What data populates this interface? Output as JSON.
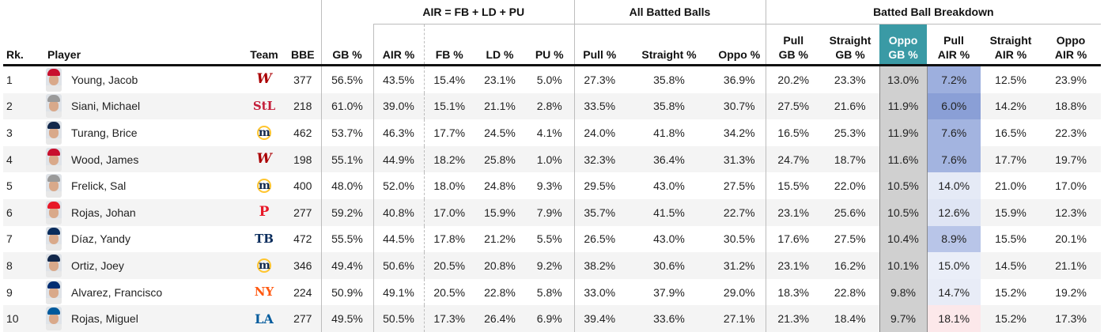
{
  "groups": {
    "air": "AIR = FB + LD + PU",
    "all": "All Batted Balls",
    "breakdown": "Batted Ball Breakdown"
  },
  "columns": {
    "rk": "Rk.",
    "player": "Player",
    "team": "Team",
    "bbe": "BBE",
    "gb": "GB %",
    "air": "AIR %",
    "fb": "FB %",
    "ld": "LD %",
    "pu": "PU %",
    "pull": "Pull %",
    "straight": "Straight %",
    "oppo": "Oppo %",
    "pull_gb": [
      "Pull",
      "GB %"
    ],
    "straight_gb": [
      "Straight",
      "GB %"
    ],
    "oppo_gb": [
      "Oppo",
      "GB %"
    ],
    "pull_air": [
      "Pull",
      "AIR %"
    ],
    "straight_air": [
      "Straight",
      "AIR %"
    ],
    "oppo_air": [
      "Oppo",
      "AIR %"
    ]
  },
  "colors": {
    "oppo_gb_header": "#3a9aa5",
    "oppo_gb_cells": "#d0d0d0",
    "pull_air_low": "#8a9fd6",
    "pull_air_high": "#fce8ea"
  },
  "rows": [
    {
      "rk": "1",
      "player": "Young, Jacob",
      "team": "W",
      "team_icon": "nationals-logo-icon",
      "team_class": "wsh",
      "cap": "#c8102e",
      "bbe": "377",
      "gb": "56.5%",
      "air": "43.5%",
      "fb": "15.4%",
      "ld": "23.1%",
      "pu": "5.0%",
      "pull": "27.3%",
      "straight": "35.8%",
      "oppo": "36.9%",
      "pull_gb": "20.2%",
      "straight_gb": "23.3%",
      "oppo_gb": "13.0%",
      "pull_air": "7.2%",
      "pull_air_level": 7.2,
      "straight_air": "12.5%",
      "oppo_air": "23.9%"
    },
    {
      "rk": "2",
      "player": "Siani, Michael",
      "team": "StL",
      "team_icon": "cardinals-logo-icon",
      "team_class": "stl",
      "cap": "#9a9a9a",
      "bbe": "218",
      "gb": "61.0%",
      "air": "39.0%",
      "fb": "15.1%",
      "ld": "21.1%",
      "pu": "2.8%",
      "pull": "33.5%",
      "straight": "35.8%",
      "oppo": "30.7%",
      "pull_gb": "27.5%",
      "straight_gb": "21.6%",
      "oppo_gb": "11.9%",
      "pull_air": "6.0%",
      "pull_air_level": 6.0,
      "straight_air": "14.2%",
      "oppo_air": "18.8%"
    },
    {
      "rk": "3",
      "player": "Turang, Brice",
      "team": "m",
      "team_icon": "brewers-logo-icon",
      "team_class": "mil",
      "cap": "#12284b",
      "bbe": "462",
      "gb": "53.7%",
      "air": "46.3%",
      "fb": "17.7%",
      "ld": "24.5%",
      "pu": "4.1%",
      "pull": "24.0%",
      "straight": "41.8%",
      "oppo": "34.2%",
      "pull_gb": "16.5%",
      "straight_gb": "25.3%",
      "oppo_gb": "11.9%",
      "pull_air": "7.6%",
      "pull_air_level": 7.6,
      "straight_air": "16.5%",
      "oppo_air": "22.3%"
    },
    {
      "rk": "4",
      "player": "Wood, James",
      "team": "W",
      "team_icon": "nationals-logo-icon",
      "team_class": "wsh",
      "cap": "#c8102e",
      "bbe": "198",
      "gb": "55.1%",
      "air": "44.9%",
      "fb": "18.2%",
      "ld": "25.8%",
      "pu": "1.0%",
      "pull": "32.3%",
      "straight": "36.4%",
      "oppo": "31.3%",
      "pull_gb": "24.7%",
      "straight_gb": "18.7%",
      "oppo_gb": "11.6%",
      "pull_air": "7.6%",
      "pull_air_level": 7.6,
      "straight_air": "17.7%",
      "oppo_air": "19.7%"
    },
    {
      "rk": "5",
      "player": "Frelick, Sal",
      "team": "m",
      "team_icon": "brewers-logo-icon",
      "team_class": "mil",
      "cap": "#9a9a9a",
      "bbe": "400",
      "gb": "48.0%",
      "air": "52.0%",
      "fb": "18.0%",
      "ld": "24.8%",
      "pu": "9.3%",
      "pull": "29.5%",
      "straight": "43.0%",
      "oppo": "27.5%",
      "pull_gb": "15.5%",
      "straight_gb": "22.0%",
      "oppo_gb": "10.5%",
      "pull_air": "14.0%",
      "pull_air_level": 14.0,
      "straight_air": "21.0%",
      "oppo_air": "17.0%"
    },
    {
      "rk": "6",
      "player": "Rojas, Johan",
      "team": "P",
      "team_icon": "phillies-logo-icon",
      "team_class": "phi",
      "cap": "#e81828",
      "bbe": "277",
      "gb": "59.2%",
      "air": "40.8%",
      "fb": "17.0%",
      "ld": "15.9%",
      "pu": "7.9%",
      "pull": "35.7%",
      "straight": "41.5%",
      "oppo": "22.7%",
      "pull_gb": "23.1%",
      "straight_gb": "25.6%",
      "oppo_gb": "10.5%",
      "pull_air": "12.6%",
      "pull_air_level": 12.6,
      "straight_air": "15.9%",
      "oppo_air": "12.3%"
    },
    {
      "rk": "7",
      "player": "Díaz, Yandy",
      "team": "TB",
      "team_icon": "rays-logo-icon",
      "team_class": "tb",
      "cap": "#092c5c",
      "bbe": "472",
      "gb": "55.5%",
      "air": "44.5%",
      "fb": "17.8%",
      "ld": "21.2%",
      "pu": "5.5%",
      "pull": "26.5%",
      "straight": "43.0%",
      "oppo": "30.5%",
      "pull_gb": "17.6%",
      "straight_gb": "27.5%",
      "oppo_gb": "10.4%",
      "pull_air": "8.9%",
      "pull_air_level": 8.9,
      "straight_air": "15.5%",
      "oppo_air": "20.1%"
    },
    {
      "rk": "8",
      "player": "Ortiz, Joey",
      "team": "m",
      "team_icon": "brewers-logo-icon",
      "team_class": "mil",
      "cap": "#12284b",
      "bbe": "346",
      "gb": "49.4%",
      "air": "50.6%",
      "fb": "20.5%",
      "ld": "20.8%",
      "pu": "9.2%",
      "pull": "38.2%",
      "straight": "30.6%",
      "oppo": "31.2%",
      "pull_gb": "23.1%",
      "straight_gb": "16.2%",
      "oppo_gb": "10.1%",
      "pull_air": "15.0%",
      "pull_air_level": 15.0,
      "straight_air": "14.5%",
      "oppo_air": "21.1%"
    },
    {
      "rk": "9",
      "player": "Alvarez, Francisco",
      "team": "NY",
      "team_icon": "mets-logo-icon",
      "team_class": "nym",
      "cap": "#002d72",
      "bbe": "224",
      "gb": "50.9%",
      "air": "49.1%",
      "fb": "20.5%",
      "ld": "22.8%",
      "pu": "5.8%",
      "pull": "33.0%",
      "straight": "37.9%",
      "oppo": "29.0%",
      "pull_gb": "18.3%",
      "straight_gb": "22.8%",
      "oppo_gb": "9.8%",
      "pull_air": "14.7%",
      "pull_air_level": 14.7,
      "straight_air": "15.2%",
      "oppo_air": "19.2%"
    },
    {
      "rk": "10",
      "player": "Rojas, Miguel",
      "team": "LA",
      "team_icon": "dodgers-logo-icon",
      "team_class": "lad",
      "cap": "#005a9c",
      "bbe": "277",
      "gb": "49.5%",
      "air": "50.5%",
      "fb": "17.3%",
      "ld": "26.4%",
      "pu": "6.9%",
      "pull": "39.4%",
      "straight": "33.6%",
      "oppo": "27.1%",
      "pull_gb": "21.3%",
      "straight_gb": "18.4%",
      "oppo_gb": "9.7%",
      "pull_air": "18.1%",
      "pull_air_level": 18.1,
      "straight_air": "15.2%",
      "oppo_air": "17.3%"
    }
  ]
}
